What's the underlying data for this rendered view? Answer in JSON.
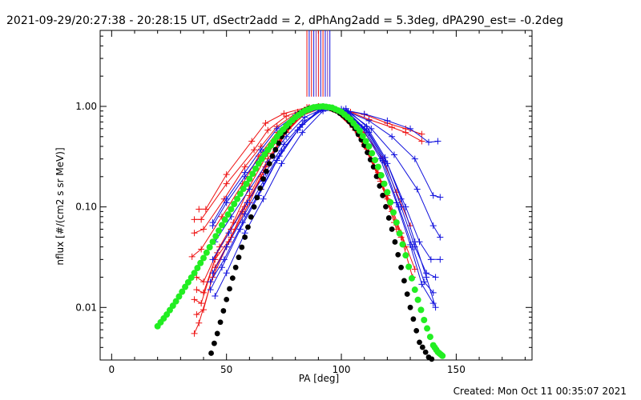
{
  "title": "2021-09-29/20:27:38 - 20:28:15 UT, dSectr2add = 2, dPhAng2add = 5.3deg, dPA290_est= -0.2deg",
  "footer": "Created: Mon Oct 11 00:35:07 2021",
  "colors": {
    "red": "#ee1111",
    "blue": "#1111dd",
    "green": "#22ee22",
    "black": "#000000",
    "marker_purple": "#8833aa"
  },
  "chart_data": {
    "type": "line",
    "xlabel": "PA [deg]",
    "ylabel": "nflux [#/(cm2 s sr MeV)]",
    "xlim": [
      -5,
      183
    ],
    "ylim": [
      0.003,
      5.7
    ],
    "yscale": "log",
    "x_ticks": [
      {
        "value": 0,
        "label": "0"
      },
      {
        "value": 50,
        "label": "50"
      },
      {
        "value": 100,
        "label": "100"
      },
      {
        "value": 150,
        "label": "150"
      }
    ],
    "y_ticks": [
      {
        "value": 0.01,
        "label": "0.01"
      },
      {
        "value": 0.1,
        "label": "0.10"
      },
      {
        "value": 1.0,
        "label": "1.00"
      }
    ],
    "grid": false,
    "legend": "none",
    "vertical_markers": {
      "x": [
        85,
        86,
        87,
        88,
        89,
        90,
        91,
        92,
        93,
        94,
        95
      ],
      "colors": [
        "#ee1111",
        "#1111dd",
        "#ee1111",
        "#1111dd",
        "#8833aa",
        "#ee1111",
        "#1111dd",
        "#ee1111",
        "#1111dd",
        "#8833aa",
        "#1111dd"
      ]
    },
    "series": [
      {
        "color": "red",
        "x": [
          38,
          41,
          50,
          61,
          67,
          75,
          85,
          90,
          100,
          110,
          120,
          128,
          135
        ],
        "y": [
          0.095,
          0.095,
          0.21,
          0.45,
          0.68,
          0.85,
          0.98,
          0.96,
          0.92,
          0.83,
          0.68,
          0.6,
          0.53
        ]
      },
      {
        "color": "red",
        "x": [
          36,
          39,
          50,
          62,
          68,
          76,
          86,
          92,
          104,
          112,
          122,
          128,
          135
        ],
        "y": [
          0.075,
          0.075,
          0.17,
          0.37,
          0.58,
          0.8,
          0.98,
          0.94,
          0.88,
          0.74,
          0.62,
          0.55,
          0.45
        ]
      },
      {
        "color": "red",
        "x": [
          36,
          40,
          49,
          58,
          65,
          72,
          81,
          90,
          100,
          110,
          118,
          124,
          130
        ],
        "y": [
          0.055,
          0.06,
          0.12,
          0.25,
          0.4,
          0.63,
          0.88,
          1.0,
          0.85,
          0.55,
          0.3,
          0.14,
          0.065
        ]
      },
      {
        "color": "red",
        "x": [
          35,
          39,
          48,
          57,
          64,
          72,
          81,
          90,
          100,
          108,
          116,
          122,
          128
        ],
        "y": [
          0.032,
          0.038,
          0.08,
          0.17,
          0.32,
          0.55,
          0.85,
          0.98,
          0.84,
          0.5,
          0.22,
          0.09,
          0.04
        ]
      },
      {
        "color": "red",
        "x": [
          37,
          40,
          47,
          53,
          60,
          68,
          77,
          86,
          96,
          106,
          114,
          120,
          126,
          131
        ],
        "y": [
          0.02,
          0.018,
          0.04,
          0.07,
          0.16,
          0.34,
          0.65,
          0.95,
          0.95,
          0.58,
          0.28,
          0.12,
          0.05,
          0.02
        ]
      },
      {
        "color": "red",
        "x": [
          37,
          40,
          46,
          52,
          60,
          68,
          77,
          86,
          96,
          105,
          113,
          120,
          126,
          132
        ],
        "y": [
          0.015,
          0.014,
          0.035,
          0.06,
          0.13,
          0.3,
          0.6,
          0.92,
          0.96,
          0.62,
          0.3,
          0.13,
          0.055,
          0.024
        ]
      },
      {
        "color": "red",
        "x": [
          36,
          39,
          45,
          52,
          60,
          67,
          76,
          85,
          95,
          104,
          112,
          118,
          124
        ],
        "y": [
          0.012,
          0.011,
          0.03,
          0.05,
          0.11,
          0.25,
          0.55,
          0.9,
          0.97,
          0.7,
          0.36,
          0.16,
          0.06
        ]
      },
      {
        "color": "red",
        "x": [
          37,
          40,
          45,
          51,
          58,
          66,
          74,
          83,
          93,
          103,
          110,
          117,
          123
        ],
        "y": [
          0.0085,
          0.0095,
          0.025,
          0.045,
          0.1,
          0.22,
          0.5,
          0.85,
          0.98,
          0.74,
          0.4,
          0.18,
          0.07
        ]
      },
      {
        "color": "red",
        "x": [
          36,
          38,
          44,
          50,
          57,
          65,
          73,
          82,
          92,
          102,
          110,
          116
        ],
        "y": [
          0.0055,
          0.007,
          0.02,
          0.04,
          0.09,
          0.2,
          0.45,
          0.8,
          0.97,
          0.78,
          0.42,
          0.2
        ]
      },
      {
        "color": "blue",
        "x": [
          44,
          50,
          58,
          65,
          72,
          80,
          90,
          100,
          110,
          120,
          130,
          138,
          142
        ],
        "y": [
          0.07,
          0.12,
          0.22,
          0.37,
          0.6,
          0.82,
          0.98,
          0.93,
          0.84,
          0.72,
          0.6,
          0.44,
          0.45
        ]
      },
      {
        "color": "blue",
        "x": [
          44,
          50,
          58,
          66,
          74,
          82,
          92,
          102,
          112,
          122,
          132,
          140,
          143
        ],
        "y": [
          0.065,
          0.11,
          0.2,
          0.35,
          0.58,
          0.82,
          0.97,
          0.9,
          0.72,
          0.5,
          0.3,
          0.13,
          0.125
        ]
      },
      {
        "color": "blue",
        "x": [
          45,
          52,
          60,
          68,
          76,
          84,
          93,
          103,
          113,
          123,
          133,
          140,
          143
        ],
        "y": [
          0.045,
          0.08,
          0.15,
          0.28,
          0.5,
          0.78,
          0.97,
          0.88,
          0.6,
          0.33,
          0.15,
          0.065,
          0.05
        ]
      },
      {
        "color": "blue",
        "x": [
          44,
          51,
          59,
          67,
          75,
          84,
          93,
          103,
          112,
          120,
          128,
          134,
          139,
          143
        ],
        "y": [
          0.03,
          0.055,
          0.11,
          0.22,
          0.42,
          0.72,
          0.95,
          0.87,
          0.55,
          0.27,
          0.1,
          0.045,
          0.03,
          0.03
        ]
      },
      {
        "color": "blue",
        "x": [
          44,
          50,
          58,
          66,
          74,
          83,
          92,
          102,
          111,
          119,
          126,
          132,
          137,
          141
        ],
        "y": [
          0.022,
          0.04,
          0.085,
          0.18,
          0.36,
          0.66,
          0.94,
          0.9,
          0.58,
          0.28,
          0.1,
          0.04,
          0.022,
          0.02
        ]
      },
      {
        "color": "blue",
        "x": [
          43,
          49,
          57,
          65,
          73,
          82,
          91,
          101,
          110,
          118,
          125,
          131,
          136,
          140
        ],
        "y": [
          0.018,
          0.03,
          0.07,
          0.15,
          0.32,
          0.62,
          0.93,
          0.92,
          0.6,
          0.29,
          0.1,
          0.04,
          0.018,
          0.014
        ]
      },
      {
        "color": "blue",
        "x": [
          43,
          48,
          56,
          64,
          72,
          81,
          90,
          100,
          109,
          117,
          124,
          130,
          135,
          140
        ],
        "y": [
          0.015,
          0.025,
          0.06,
          0.13,
          0.29,
          0.58,
          0.92,
          0.94,
          0.62,
          0.3,
          0.11,
          0.042,
          0.017,
          0.011
        ]
      },
      {
        "color": "blue",
        "x": [
          45,
          50,
          58,
          66,
          74,
          83,
          92,
          102,
          111,
          119,
          126,
          132,
          137,
          141
        ],
        "y": [
          0.013,
          0.022,
          0.055,
          0.12,
          0.27,
          0.55,
          0.9,
          0.95,
          0.63,
          0.31,
          0.12,
          0.045,
          0.02,
          0.01
        ]
      }
    ],
    "green_fit": {
      "color": "green",
      "x": [
        20,
        24,
        28,
        32,
        36,
        40,
        44,
        48,
        52,
        56,
        60,
        64,
        68,
        72,
        76,
        80,
        84,
        88,
        92,
        96,
        100,
        104,
        108,
        112,
        116,
        120,
        124,
        128,
        132,
        136,
        140,
        142,
        144
      ],
      "y": [
        0.0065,
        0.0085,
        0.0115,
        0.016,
        0.022,
        0.031,
        0.045,
        0.066,
        0.095,
        0.135,
        0.19,
        0.27,
        0.37,
        0.5,
        0.64,
        0.78,
        0.9,
        0.98,
        1.0,
        0.97,
        0.88,
        0.74,
        0.57,
        0.4,
        0.25,
        0.14,
        0.07,
        0.033,
        0.015,
        0.0075,
        0.0042,
        0.0036,
        0.0033
      ]
    },
    "black_fit": {
      "color": "black",
      "x": [
        42,
        46,
        50,
        54,
        58,
        62,
        66,
        70,
        74,
        78,
        82,
        86,
        90,
        94,
        98,
        102,
        106,
        110,
        114,
        118,
        122,
        126,
        130,
        134,
        138,
        142
      ],
      "y": [
        0.0028,
        0.0055,
        0.012,
        0.025,
        0.05,
        0.1,
        0.19,
        0.32,
        0.5,
        0.7,
        0.86,
        0.96,
        1.0,
        0.98,
        0.9,
        0.77,
        0.6,
        0.41,
        0.25,
        0.13,
        0.06,
        0.025,
        0.01,
        0.0045,
        0.0032,
        0.0028
      ]
    }
  }
}
